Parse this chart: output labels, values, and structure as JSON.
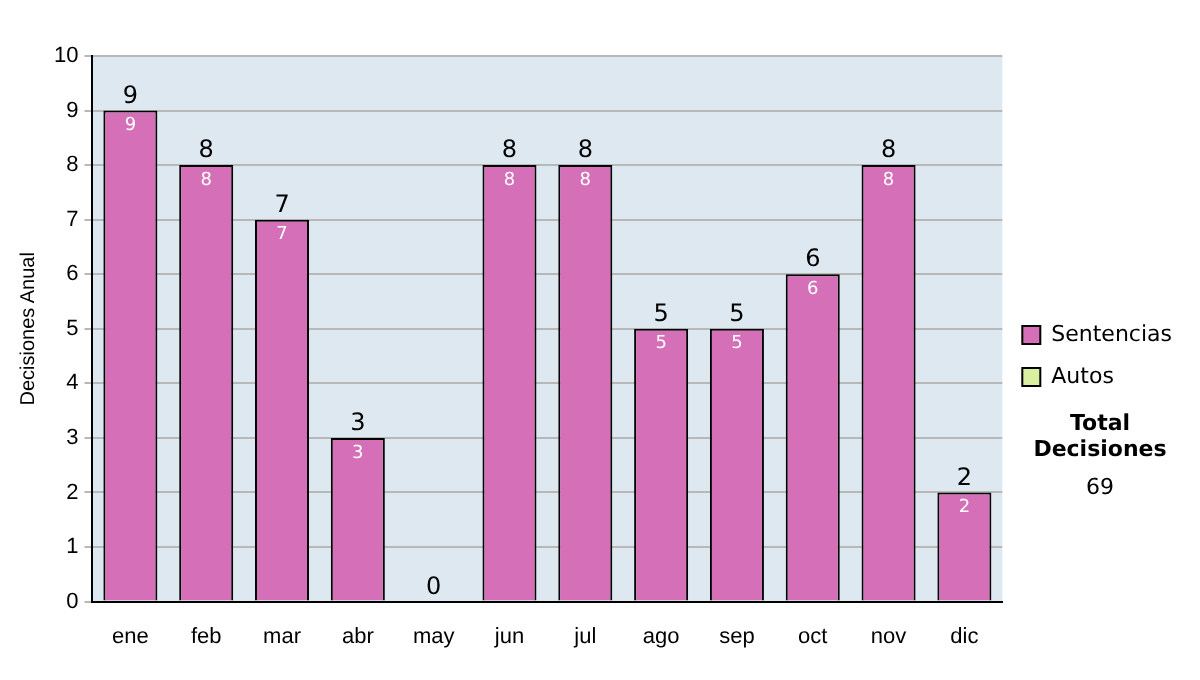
{
  "chart_data": {
    "type": "bar",
    "ylabel": "Decisiones Anual",
    "categories": [
      "ene",
      "feb",
      "mar",
      "abr",
      "may",
      "jun",
      "jul",
      "ago",
      "sep",
      "oct",
      "nov",
      "dic"
    ],
    "series": [
      {
        "name": "Sentencias",
        "color": "#d46fb8",
        "values": [
          9,
          8,
          7,
          3,
          0,
          8,
          8,
          5,
          5,
          6,
          8,
          2
        ],
        "value_labels": [
          "9",
          "8",
          "7",
          "3",
          null,
          "8",
          "8",
          "5",
          "5",
          "6",
          "8",
          "2"
        ]
      },
      {
        "name": "Autos",
        "color": "#d8f0a0",
        "values": [
          0,
          0,
          0,
          0,
          0,
          0,
          0,
          0,
          0,
          0,
          0,
          0
        ]
      }
    ],
    "stacked": true,
    "totals": [
      "9",
      "8",
      "7",
      "3",
      "0",
      "8",
      "8",
      "5",
      "5",
      "6",
      "8",
      "2"
    ],
    "ylim": [
      0,
      10
    ],
    "yticks": [
      0,
      1,
      2,
      3,
      4,
      5,
      6,
      7,
      8,
      9,
      10
    ],
    "grid": "y",
    "legend": "right",
    "annotations": [
      "Total Decisiones",
      "69"
    ]
  }
}
